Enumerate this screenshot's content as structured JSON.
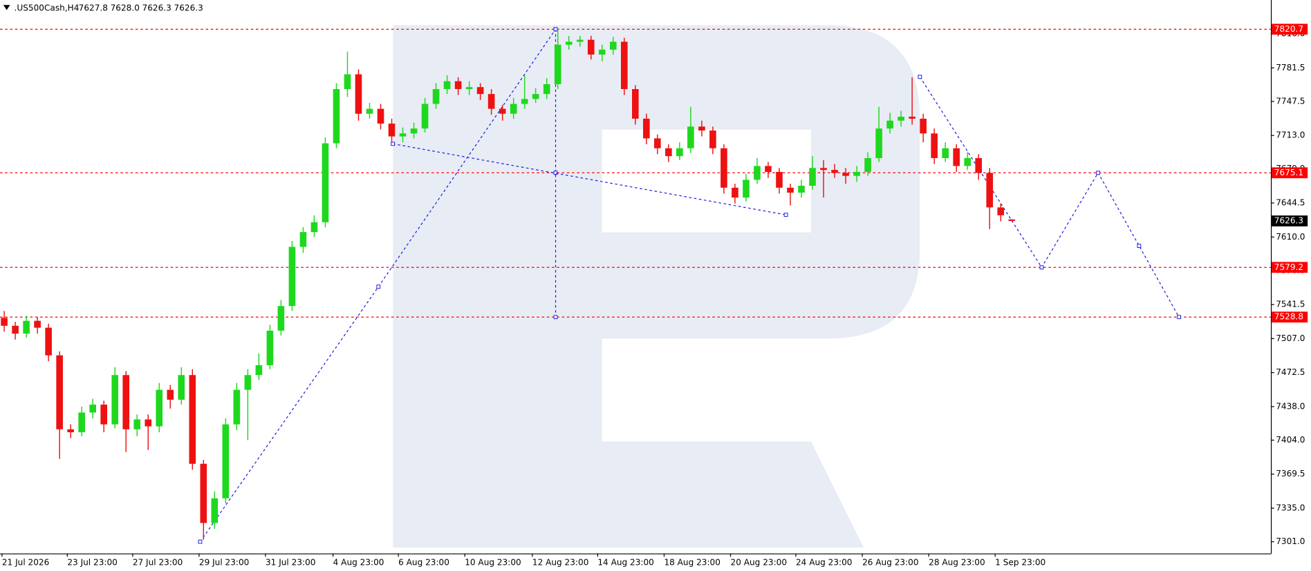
{
  "chart_data": {
    "type": "candlestick",
    "title": ".US500Cash,H4",
    "last_bar_value_labels": [
      "7627.8",
      "7628.0",
      "7626.3",
      "7626.3"
    ],
    "up_color": "#1ed81e",
    "down_color": "#ee1111",
    "xlim": [
      -0.38,
      114.4
    ],
    "ylim": [
      7289.1,
      7847.8
    ],
    "candles": [
      [
        7528,
        7535,
        7514,
        7520
      ],
      [
        7520,
        7524,
        7506,
        7512
      ],
      [
        7512,
        7530,
        7508,
        7525
      ],
      [
        7525,
        7529,
        7512,
        7518
      ],
      [
        7518,
        7522,
        7484,
        7490
      ],
      [
        7490,
        7494,
        7385,
        7415
      ],
      [
        7415,
        7420,
        7406,
        7412
      ],
      [
        7412,
        7438,
        7408,
        7432
      ],
      [
        7432,
        7446,
        7426,
        7440
      ],
      [
        7440,
        7444,
        7412,
        7420
      ],
      [
        7420,
        7478,
        7416,
        7470
      ],
      [
        7470,
        7474,
        7392,
        7415
      ],
      [
        7415,
        7430,
        7408,
        7425
      ],
      [
        7425,
        7430,
        7394,
        7418
      ],
      [
        7418,
        7462,
        7412,
        7455
      ],
      [
        7455,
        7460,
        7436,
        7445
      ],
      [
        7445,
        7478,
        7440,
        7470
      ],
      [
        7470,
        7476,
        7374,
        7380
      ],
      [
        7380,
        7384,
        7303,
        7320
      ],
      [
        7320,
        7352,
        7314,
        7345
      ],
      [
        7345,
        7426,
        7340,
        7420
      ],
      [
        7420,
        7462,
        7414,
        7455
      ],
      [
        7455,
        7476,
        7404,
        7470
      ],
      [
        7470,
        7492,
        7465,
        7480
      ],
      [
        7480,
        7521,
        7476,
        7515
      ],
      [
        7515,
        7546,
        7510,
        7540
      ],
      [
        7540,
        7606,
        7535,
        7600
      ],
      [
        7600,
        7620,
        7594,
        7615
      ],
      [
        7615,
        7632,
        7610,
        7625
      ],
      [
        7625,
        7711,
        7620,
        7705
      ],
      [
        7705,
        7766,
        7700,
        7760
      ],
      [
        7760,
        7798,
        7752,
        7775
      ],
      [
        7775,
        7780,
        7728,
        7735
      ],
      [
        7735,
        7746,
        7730,
        7740
      ],
      [
        7740,
        7745,
        7719,
        7725
      ],
      [
        7725,
        7730,
        7706,
        7712
      ],
      [
        7712,
        7721,
        7706,
        7715
      ],
      [
        7715,
        7726,
        7710,
        7720
      ],
      [
        7720,
        7751,
        7716,
        7745
      ],
      [
        7745,
        7766,
        7740,
        7760
      ],
      [
        7760,
        7774,
        7755,
        7768
      ],
      [
        7768,
        7772,
        7754,
        7760
      ],
      [
        7760,
        7768,
        7754,
        7762
      ],
      [
        7762,
        7766,
        7749,
        7755
      ],
      [
        7755,
        7760,
        7734,
        7740
      ],
      [
        7740,
        7744,
        7728,
        7735
      ],
      [
        7735,
        7751,
        7730,
        7745
      ],
      [
        7745,
        7774,
        7740,
        7750
      ],
      [
        7750,
        7761,
        7746,
        7755
      ],
      [
        7755,
        7771,
        7750,
        7765
      ],
      [
        7765,
        7820.7,
        7760,
        7805
      ],
      [
        7805,
        7814,
        7800,
        7808
      ],
      [
        7808,
        7814,
        7803,
        7810
      ],
      [
        7810,
        7814,
        7790,
        7795
      ],
      [
        7795,
        7805,
        7788,
        7800
      ],
      [
        7800,
        7813,
        7795,
        7808
      ],
      [
        7808,
        7812,
        7754,
        7760
      ],
      [
        7760,
        7764,
        7724,
        7730
      ],
      [
        7730,
        7735,
        7704,
        7710
      ],
      [
        7710,
        7714,
        7694,
        7700
      ],
      [
        7700,
        7704,
        7686,
        7692
      ],
      [
        7692,
        7706,
        7688,
        7700
      ],
      [
        7700,
        7742,
        7695,
        7722
      ],
      [
        7722,
        7728,
        7712,
        7718
      ],
      [
        7718,
        7722,
        7694,
        7700
      ],
      [
        7700,
        7704,
        7654,
        7660
      ],
      [
        7660,
        7664,
        7644,
        7650
      ],
      [
        7650,
        7674,
        7646,
        7668
      ],
      [
        7668,
        7690,
        7664,
        7682
      ],
      [
        7682,
        7686,
        7670,
        7676
      ],
      [
        7676,
        7680,
        7654,
        7660
      ],
      [
        7660,
        7664,
        7642,
        7655
      ],
      [
        7655,
        7668,
        7650,
        7662
      ],
      [
        7662,
        7692,
        7658,
        7680
      ],
      [
        7680,
        7688,
        7650,
        7678
      ],
      [
        7678,
        7684,
        7670,
        7675
      ],
      [
        7675,
        7680,
        7664,
        7672
      ],
      [
        7672,
        7682,
        7666,
        7676
      ],
      [
        7676,
        7696,
        7672,
        7690
      ],
      [
        7690,
        7742,
        7686,
        7720
      ],
      [
        7720,
        7736,
        7715,
        7728
      ],
      [
        7728,
        7738,
        7722,
        7732
      ],
      [
        7732,
        7772,
        7724,
        7730
      ],
      [
        7730,
        7735,
        7706,
        7715
      ],
      [
        7715,
        7720,
        7684,
        7690
      ],
      [
        7690,
        7706,
        7686,
        7700
      ],
      [
        7700,
        7704,
        7676,
        7682
      ],
      [
        7682,
        7696,
        7678,
        7690
      ],
      [
        7690,
        7694,
        7668,
        7675
      ],
      [
        7675,
        7680,
        7618,
        7640
      ],
      [
        7640,
        7644,
        7626,
        7632
      ],
      [
        7627.8,
        7628.0,
        7626.3,
        7626.3
      ]
    ],
    "yticks": [
      {
        "value": 7816.0,
        "label": "7816.0"
      },
      {
        "value": 7781.5,
        "label": "7781.5"
      },
      {
        "value": 7747.5,
        "label": "7747.5"
      },
      {
        "value": 7713.0,
        "label": "7713.0"
      },
      {
        "value": 7679.0,
        "label": "7679.0"
      },
      {
        "value": 7644.5,
        "label": "7644.5"
      },
      {
        "value": 7610.0,
        "label": "7610.0"
      },
      {
        "value": 7576.0,
        "label": "7576.0"
      },
      {
        "value": 7541.5,
        "label": "7541.5"
      },
      {
        "value": 7507.0,
        "label": "7507.0"
      },
      {
        "value": 7472.5,
        "label": "7472.5"
      },
      {
        "value": 7438.0,
        "label": "7438.0"
      },
      {
        "value": 7404.0,
        "label": "7404.0"
      },
      {
        "value": 7369.5,
        "label": "7369.5"
      },
      {
        "value": 7335.0,
        "label": "7335.0"
      },
      {
        "value": 7301.0,
        "label": "7301.0"
      }
    ],
    "xticks": [
      {
        "value": -0.2,
        "label": "21 Jul 2026"
      },
      {
        "value": 5.7,
        "label": "23 Jul 23:00"
      },
      {
        "value": 11.6,
        "label": "27 Jul 23:00"
      },
      {
        "value": 17.6,
        "label": "29 Jul 23:00"
      },
      {
        "value": 23.6,
        "label": "31 Jul 23:00"
      },
      {
        "value": 29.7,
        "label": "4 Aug 23:00"
      },
      {
        "value": 35.6,
        "label": "6 Aug 23:00"
      },
      {
        "value": 41.6,
        "label": "10 Aug 23:00"
      },
      {
        "value": 47.7,
        "label": "12 Aug 23:00"
      },
      {
        "value": 53.6,
        "label": "14 Aug 23:00"
      },
      {
        "value": 59.6,
        "label": "18 Aug 23:00"
      },
      {
        "value": 65.6,
        "label": "20 Aug 23:00"
      },
      {
        "value": 71.5,
        "label": "24 Aug 23:00"
      },
      {
        "value": 77.5,
        "label": "26 Aug 23:00"
      },
      {
        "value": 83.5,
        "label": "28 Aug 23:00"
      },
      {
        "value": 89.5,
        "label": "1 Sep 23:00"
      }
    ],
    "levels": [
      7820.7,
      7675.1,
      7579.2,
      7528.8
    ],
    "level_color": "#ff0000",
    "annotation_color": "#1a1ae6",
    "annotations": [
      {
        "x": [
          17.7,
          33.8,
          49.8
        ],
        "y": [
          7301,
          7559.6,
          7820.7
        ]
      },
      {
        "x": [
          49.8,
          49.8,
          49.8
        ],
        "y": [
          7820.7,
          7675.1,
          7528.8
        ]
      },
      {
        "x": [
          35.1,
          70.6
        ],
        "y": [
          7704.5,
          7632.5
        ]
      },
      {
        "x": [
          82.7,
          93.7,
          98.8,
          102.5,
          106.1
        ],
        "y": [
          7772.4,
          7579.2,
          7675.1,
          7601,
          7528.8
        ]
      }
    ]
  }
}
